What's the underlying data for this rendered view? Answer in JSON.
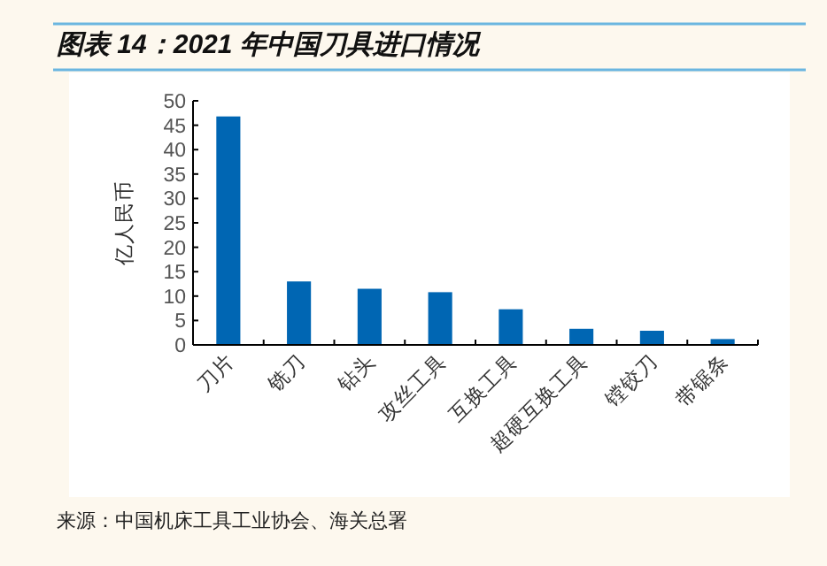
{
  "chart_data": {
    "type": "bar",
    "title": "图表 14：2021 年中国刀具进口情况",
    "ylabel": "亿人民币",
    "categories": [
      "刀片",
      "铣刀",
      "钻头",
      "攻丝工具",
      "互换工具",
      "超硬互换工具",
      "镗铰刀",
      "带锯条"
    ],
    "values": [
      46.8,
      13.0,
      11.5,
      10.8,
      7.3,
      3.3,
      2.9,
      1.2
    ],
    "color": "#0066b3",
    "ylim": [
      0,
      50
    ],
    "yticks": [
      0,
      5,
      10,
      15,
      20,
      25,
      30,
      35,
      40,
      45,
      50
    ],
    "grid": false,
    "annotations": [
      "来源：中国机床工具工业协会、海关总署"
    ]
  }
}
